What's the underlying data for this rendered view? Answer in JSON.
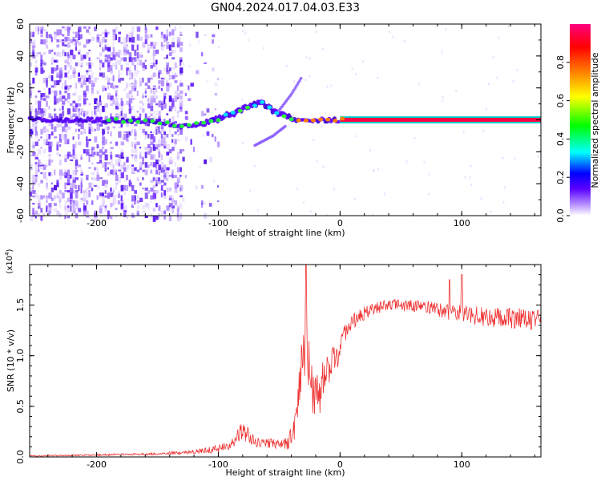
{
  "figure_title": "GN04.2024.017.04.03.E33",
  "chart_data": [
    {
      "type": "heatmap",
      "title": "GN04.2024.017.04.03.E33",
      "xlabel": "Height of straight line (km)",
      "ylabel": "Frequency (Hz)",
      "xlim": [
        -255,
        165
      ],
      "ylim": [
        -60,
        60
      ],
      "xticks": [
        -200,
        -100,
        0,
        100
      ],
      "xtick_labels": [
        "-200",
        "-100",
        "0",
        "100"
      ],
      "yticks": [
        -60,
        -40,
        -20,
        0,
        20,
        40,
        60
      ],
      "ytick_labels": [
        "-60",
        "-40",
        "-20",
        "0",
        "20",
        "40",
        "60"
      ],
      "colorbar": {
        "label": "Normalized spectral amplitude",
        "range": [
          0,
          1
        ],
        "ticks": [
          0.0,
          0.2,
          0.4,
          0.6,
          0.8
        ],
        "tick_labels": [
          "0.0",
          "0.2",
          "0.4",
          "0.6",
          "0.8"
        ],
        "colors": [
          "#ffffff",
          "#b48cff",
          "#5a00ff",
          "#0000ff",
          "#00ffff",
          "#00ff00",
          "#ffff00",
          "#ff8000",
          "#ff0000",
          "#ff0080"
        ]
      },
      "description_points": {
        "noise_region_x": [
          -255,
          -130
        ],
        "ridge": [
          {
            "x": -250,
            "f": 0
          },
          {
            "x": -200,
            "f": 0
          },
          {
            "x": -150,
            "f": -1
          },
          {
            "x": -130,
            "f": -4
          },
          {
            "x": -110,
            "f": -2
          },
          {
            "x": -95,
            "f": 2
          },
          {
            "x": -85,
            "f": 5
          },
          {
            "x": -75,
            "f": 8
          },
          {
            "x": -65,
            "f": 11
          },
          {
            "x": -55,
            "f": 6
          },
          {
            "x": -45,
            "f": 2
          },
          {
            "x": -35,
            "f": 0
          },
          {
            "x": 0,
            "f": 0
          },
          {
            "x": 165,
            "f": 0
          }
        ],
        "upper_branch": [
          {
            "x": -50,
            "f": 6
          },
          {
            "x": -40,
            "f": 16
          },
          {
            "x": -32,
            "f": 26
          }
        ],
        "lower_branch": [
          {
            "x": -70,
            "f": -16
          },
          {
            "x": -55,
            "f": -10
          },
          {
            "x": -45,
            "f": -4
          }
        ],
        "strong_line_from_x": 0
      }
    },
    {
      "type": "line",
      "xlabel": "Height of straight line (km)",
      "ylabel": "SNR (10 * v/v)",
      "yscale_label": "(x10",
      "yscale_exp": "4",
      "xlim": [
        -255,
        165
      ],
      "ylim": [
        0.0,
        1.9
      ],
      "xticks": [
        -200,
        -100,
        0,
        100
      ],
      "xtick_labels": [
        "-200",
        "-100",
        "0",
        "100"
      ],
      "yticks": [
        0.0,
        0.5,
        1.0,
        1.5
      ],
      "ytick_labels": [
        "0.0",
        "0.5",
        "1.0",
        "1.5"
      ],
      "color": "#ee3333",
      "envelope": {
        "x": [
          -255,
          -200,
          -150,
          -120,
          -100,
          -90,
          -82,
          -76,
          -70,
          -60,
          -50,
          -42,
          -36,
          -33,
          -30,
          -28,
          -25,
          -22,
          -18,
          -14,
          -10,
          -6,
          -2,
          0,
          5,
          10,
          20,
          30,
          40,
          50,
          60,
          70,
          80,
          90,
          100,
          110,
          120,
          130,
          140,
          150,
          160,
          165
        ],
        "y": [
          0.01,
          0.02,
          0.03,
          0.05,
          0.08,
          0.12,
          0.25,
          0.22,
          0.15,
          0.14,
          0.13,
          0.15,
          0.4,
          0.85,
          0.9,
          1.3,
          0.75,
          0.6,
          0.55,
          0.8,
          0.85,
          0.95,
          1.0,
          1.1,
          1.25,
          1.33,
          1.42,
          1.47,
          1.5,
          1.5,
          1.49,
          1.48,
          1.45,
          1.43,
          1.42,
          1.4,
          1.38,
          1.38,
          1.37,
          1.37,
          1.35,
          1.35
        ],
        "noise": [
          0.005,
          0.008,
          0.012,
          0.02,
          0.04,
          0.05,
          0.09,
          0.08,
          0.05,
          0.05,
          0.05,
          0.08,
          0.2,
          0.3,
          0.35,
          0.35,
          0.3,
          0.25,
          0.25,
          0.2,
          0.15,
          0.15,
          0.12,
          0.12,
          0.1,
          0.08,
          0.07,
          0.06,
          0.06,
          0.06,
          0.06,
          0.07,
          0.07,
          0.08,
          0.08,
          0.09,
          0.1,
          0.1,
          0.1,
          0.1,
          0.1,
          0.1
        ]
      },
      "peaks": [
        {
          "x": -28,
          "y": 1.9
        },
        {
          "x": 90,
          "y": 1.75
        },
        {
          "x": 100,
          "y": 1.8
        }
      ]
    }
  ]
}
